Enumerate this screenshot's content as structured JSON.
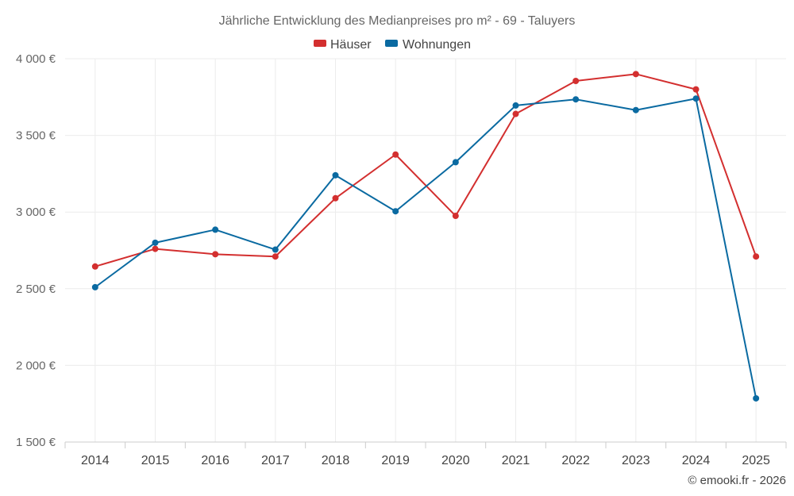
{
  "chart_data": {
    "type": "line",
    "title": "Jährliche Entwicklung des Medianpreises pro m² - 69 - Taluyers",
    "categories": [
      "2014",
      "2015",
      "2016",
      "2017",
      "2018",
      "2019",
      "2020",
      "2021",
      "2022",
      "2023",
      "2024",
      "2025"
    ],
    "series": [
      {
        "name": "Häuser",
        "color": "#d32f2f",
        "values": [
          2645,
          2760,
          2725,
          2710,
          3090,
          3375,
          2975,
          3640,
          3855,
          3900,
          3800,
          2710
        ]
      },
      {
        "name": "Wohnungen",
        "color": "#0a6aa1",
        "values": [
          2510,
          2800,
          2885,
          2755,
          3240,
          3005,
          3325,
          3695,
          3735,
          3665,
          3740,
          1785
        ]
      }
    ],
    "ylim": [
      1500,
      4000
    ],
    "yticks": [
      1500,
      2000,
      2500,
      3000,
      3500,
      4000
    ],
    "ytick_labels": [
      "1 500 €",
      "2 000 €",
      "2 500 €",
      "3 000 €",
      "3 500 €",
      "4 000 €"
    ],
    "xlabel": "",
    "ylabel": "",
    "grid": true,
    "legend": "top-center"
  },
  "credit": "© emooki.fr - 2026"
}
